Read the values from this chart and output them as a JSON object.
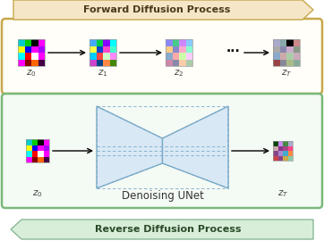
{
  "forward_label": "Forward Diffusion Process",
  "reverse_label": "Reverse Diffusion Process",
  "unet_label": "Denoising UNet",
  "forward_arrow_fill": "#f5e6c8",
  "forward_arrow_edge": "#c8a84b",
  "reverse_arrow_fill": "#d8eed8",
  "reverse_arrow_edge": "#8ab89a",
  "forward_box_color": "#c8a84b",
  "forward_box_bg": "#fffef8",
  "reverse_box_color": "#7ab87a",
  "reverse_box_bg": "#f4faf4",
  "unet_fill_color": "#d8e8f5",
  "unet_edge_color": "#7aaac8",
  "bg_color": "#ffffff",
  "img_z0_fwd": [
    [
      "#00cccc",
      "#00cc00",
      "#000000",
      "#ff00ff"
    ],
    [
      "#ffff00",
      "#0000ff",
      "#ff00ff",
      "#aa00ff"
    ],
    [
      "#00ffff",
      "#ff0000",
      "#ffffff",
      "#ff00ff"
    ],
    [
      "#ff00ff",
      "#880000",
      "#ff6600",
      "#440044"
    ]
  ],
  "img_z1_fwd": [
    [
      "#44aaff",
      "#00cc44",
      "#8800ff",
      "#00ffff"
    ],
    [
      "#ffff44",
      "#0044cc",
      "#ff44cc",
      "#44ffcc"
    ],
    [
      "#00ccff",
      "#ff4444",
      "#ccffcc",
      "#ff88ff"
    ],
    [
      "#cc44cc",
      "#004488",
      "#ff8844",
      "#448800"
    ]
  ],
  "img_z2_fwd": [
    [
      "#8888ff",
      "#44cc88",
      "#cc88ff",
      "#88ccff"
    ],
    [
      "#ffcc88",
      "#8888cc",
      "#ffaacc",
      "#88ffcc"
    ],
    [
      "#88aacc",
      "#ffaaaa",
      "#ccffaa",
      "#ffccff"
    ],
    [
      "#cc88aa",
      "#8888aa",
      "#ffccaa",
      "#aaccaa"
    ]
  ],
  "img_zT_fwd": [
    [
      "#aaaacc",
      "#88aaaa",
      "#000000",
      "#cc8888"
    ],
    [
      "#aaaaaa",
      "#8888aa",
      "#ccaacc",
      "#889988"
    ],
    [
      "#88aacc",
      "#ccaaaa",
      "#aaccaa",
      "#ccaabb"
    ],
    [
      "#994444",
      "#888899",
      "#aabb88",
      "#88aa99"
    ]
  ],
  "img_z0_rev": [
    [
      "#00cccc",
      "#00cc00",
      "#000000",
      "#ff00ff"
    ],
    [
      "#ffff00",
      "#0000ff",
      "#ff00ff",
      "#aa00ff"
    ],
    [
      "#00ffff",
      "#ff0000",
      "#ffffff",
      "#ff00ff"
    ],
    [
      "#ff00ff",
      "#880000",
      "#ff6600",
      "#440044"
    ]
  ],
  "img_zT_rev": [
    [
      "#004400",
      "#cc88ff",
      "#448844",
      "#aaaacc"
    ],
    [
      "#ccaaaa",
      "#883388",
      "#aa4488",
      "#ff4488"
    ],
    [
      "#884488",
      "#aa88cc",
      "#44aacc",
      "#ff8844"
    ],
    [
      "#cc4444",
      "#884488",
      "#ccaa44",
      "#88ccaa"
    ]
  ]
}
